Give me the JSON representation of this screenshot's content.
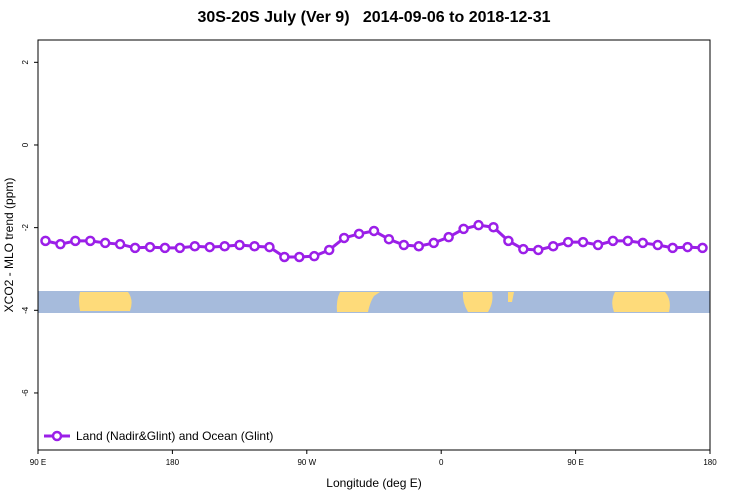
{
  "chart_data": {
    "type": "line",
    "title": "30S-20S July (Ver 9)   2014-09-06 to 2018-12-31",
    "x_label": "Longitude (deg E)",
    "y_label": "XCO2 - MLO trend (ppm)",
    "x": [
      95,
      105,
      115,
      125,
      135,
      145,
      155,
      165,
      175,
      185,
      195,
      205,
      215,
      225,
      235,
      245,
      255,
      265,
      275,
      285,
      295,
      305,
      315,
      325,
      335,
      345,
      355,
      365,
      375,
      385,
      395,
      405,
      415,
      425,
      435,
      445,
      455,
      465,
      475,
      485,
      495,
      505,
      515,
      525,
      535
    ],
    "series": [
      {
        "name": "Land (Nadir&Glint) and Ocean (Glint)",
        "color": "#9b1fe8",
        "values": [
          -2.32,
          -2.4,
          -2.32,
          -2.32,
          -2.37,
          -2.4,
          -2.49,
          -2.47,
          -2.49,
          -2.49,
          -2.45,
          -2.47,
          -2.45,
          -2.42,
          -2.45,
          -2.47,
          -2.71,
          -2.71,
          -2.69,
          -2.54,
          -2.25,
          -2.15,
          -2.08,
          -2.28,
          -2.42,
          -2.45,
          -2.37,
          -2.23,
          -2.03,
          -1.94,
          -1.99,
          -2.32,
          -2.52,
          -2.54,
          -2.45,
          -2.35,
          -2.35,
          -2.42,
          -2.32,
          -2.32,
          -2.37,
          -2.42,
          -2.49,
          -2.47,
          -2.49
        ]
      }
    ],
    "xlim": [
      90,
      540
    ],
    "xticks": [
      {
        "value": 90,
        "label": "90 E"
      },
      180,
      {
        "value": 270,
        "label": "90 W"
      },
      {
        "value": 360,
        "label": "0"
      },
      {
        "value": 450,
        "label": "90 E"
      },
      {
        "value": 540,
        "label": "180"
      }
    ],
    "ylim": [
      -7.38,
      2.54
    ],
    "yticks": [
      2,
      0,
      -2,
      -4,
      -6
    ],
    "legend": "bottom-left",
    "grid": false
  }
}
